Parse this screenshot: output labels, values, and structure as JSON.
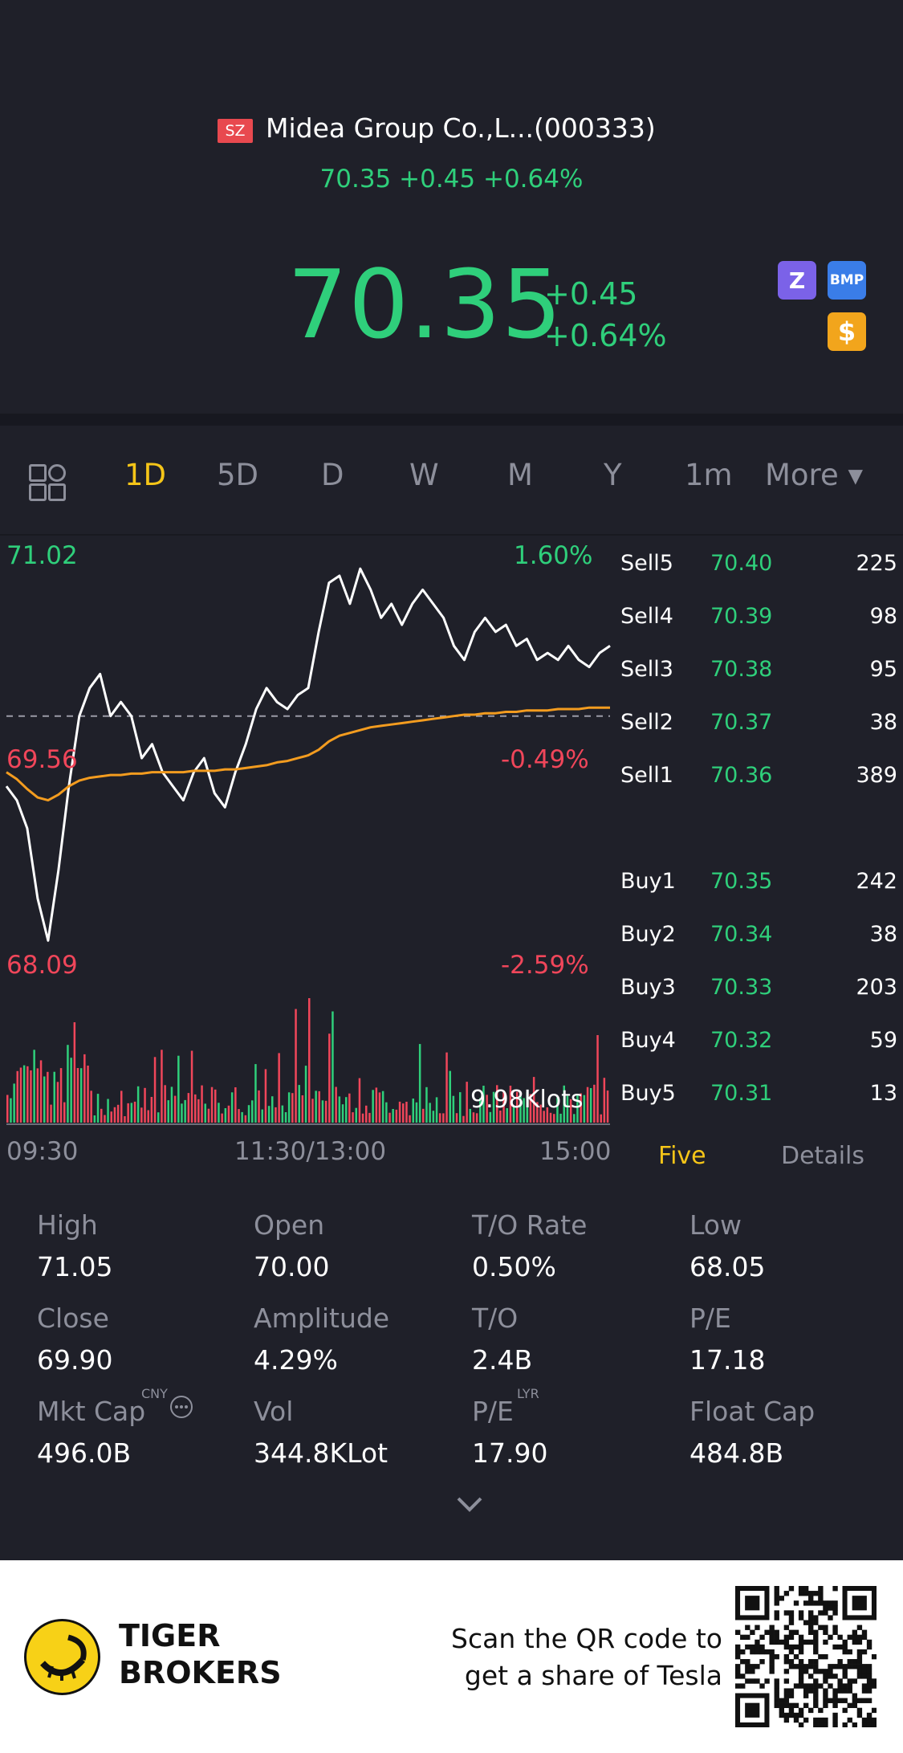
{
  "stock": {
    "exchange_badge": "SZ",
    "name": "Midea Group Co.,L...(000333)",
    "sub_quote": "70.35 +0.45 +0.64%",
    "price": "70.35",
    "change_abs": "+0.45",
    "change_pct": "+0.64%"
  },
  "header_icons": {
    "zz": "Z",
    "bmp": "BMP",
    "dollar": "$"
  },
  "colors": {
    "up": "#2fcf7b",
    "down": "#f0465a",
    "accent": "#f5c518",
    "avg_line": "#f39c1f",
    "background": "#1f2029"
  },
  "tabs": {
    "items": [
      "1D",
      "5D",
      "D",
      "W",
      "M",
      "Y",
      "1m",
      "More ▾"
    ],
    "active": "1D"
  },
  "chart": {
    "y_high": "71.02",
    "y_high_pct": "1.60%",
    "y_mid": "69.56",
    "y_mid_pct": "-0.49%",
    "y_low": "68.09",
    "y_low_pct": "-2.59%",
    "volume_label": "9.98Klots",
    "x_labels": [
      "09:30",
      "11:30/13:00",
      "15:00"
    ]
  },
  "chart_data": {
    "type": "line",
    "x_range": [
      "09:30",
      "15:00"
    ],
    "y_range": [
      68.09,
      71.02
    ],
    "prev_close": 69.9,
    "series": [
      {
        "name": "price",
        "values": [
          69.4,
          69.3,
          69.1,
          68.6,
          68.3,
          68.8,
          69.4,
          69.9,
          70.1,
          70.2,
          69.9,
          70.0,
          69.9,
          69.6,
          69.7,
          69.5,
          69.4,
          69.3,
          69.5,
          69.6,
          69.35,
          69.25,
          69.5,
          69.7,
          69.95,
          70.1,
          70.0,
          69.95,
          70.05,
          70.1,
          70.5,
          70.85,
          70.9,
          70.7,
          70.95,
          70.8,
          70.6,
          70.7,
          70.55,
          70.7,
          70.8,
          70.7,
          70.6,
          70.4,
          70.3,
          70.5,
          70.6,
          70.5,
          70.55,
          70.4,
          70.45,
          70.3,
          70.35,
          70.3,
          70.4,
          70.3,
          70.25,
          70.35,
          70.4
        ]
      },
      {
        "name": "avg",
        "values": [
          69.5,
          69.45,
          69.38,
          69.32,
          69.3,
          69.34,
          69.4,
          69.44,
          69.46,
          69.47,
          69.48,
          69.48,
          69.49,
          69.49,
          69.5,
          69.5,
          69.5,
          69.5,
          69.51,
          69.51,
          69.51,
          69.52,
          69.52,
          69.53,
          69.54,
          69.55,
          69.57,
          69.58,
          69.6,
          69.62,
          69.66,
          69.72,
          69.76,
          69.78,
          69.8,
          69.82,
          69.83,
          69.84,
          69.85,
          69.86,
          69.87,
          69.88,
          69.89,
          69.9,
          69.91,
          69.91,
          69.92,
          69.92,
          69.93,
          69.93,
          69.94,
          69.94,
          69.94,
          69.95,
          69.95,
          69.95,
          69.96,
          69.96,
          69.96
        ]
      }
    ]
  },
  "order_book": {
    "sells": [
      {
        "label": "Sell5",
        "price": "70.40",
        "qty": "225"
      },
      {
        "label": "Sell4",
        "price": "70.39",
        "qty": "98"
      },
      {
        "label": "Sell3",
        "price": "70.38",
        "qty": "95"
      },
      {
        "label": "Sell2",
        "price": "70.37",
        "qty": "38"
      },
      {
        "label": "Sell1",
        "price": "70.36",
        "qty": "389"
      }
    ],
    "buys": [
      {
        "label": "Buy1",
        "price": "70.35",
        "qty": "242"
      },
      {
        "label": "Buy2",
        "price": "70.34",
        "qty": "38"
      },
      {
        "label": "Buy3",
        "price": "70.33",
        "qty": "203"
      },
      {
        "label": "Buy4",
        "price": "70.32",
        "qty": "59"
      },
      {
        "label": "Buy5",
        "price": "70.31",
        "qty": "13"
      }
    ],
    "tab_five": "Five",
    "tab_details": "Details"
  },
  "stats": {
    "high_label": "High",
    "high": "71.05",
    "open_label": "Open",
    "open": "70.00",
    "to_rate_label": "T/O Rate",
    "to_rate": "0.50%",
    "low_label": "Low",
    "low": "68.05",
    "close_label": "Close",
    "close": "69.90",
    "amplitude_label": "Amplitude",
    "amplitude": "4.29%",
    "to_label": "T/O",
    "to": "2.4B",
    "pe_label": "P/E",
    "pe": "17.18",
    "mktcap_label": "Mkt Cap",
    "mktcap_sup": "CNY",
    "mktcap": "496.0B",
    "vol_label": "Vol",
    "vol": "344.8KLot",
    "pe_lyr_label": "P/E",
    "pe_lyr_sup": "LYR",
    "pe_lyr": "17.90",
    "floatcap_label": "Float Cap",
    "floatcap": "484.8B"
  },
  "footer": {
    "brand_line1": "TIGER",
    "brand_line2": "BROKERS",
    "qr_line1": "Scan the QR code to",
    "qr_line2": "get a share of Tesla"
  }
}
